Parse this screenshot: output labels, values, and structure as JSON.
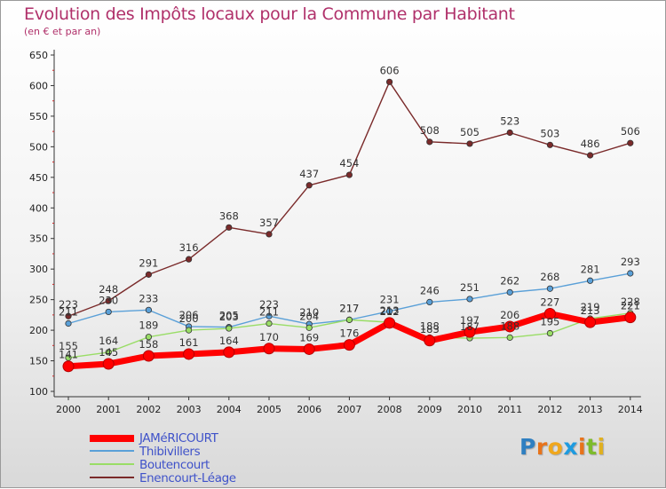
{
  "title": "Evolution des Impôts locaux pour la Commune par Habitant",
  "subtitle": "(en € et par an)",
  "logo": {
    "text": "Proxiti",
    "letters": [
      "P",
      "r",
      "o",
      "x",
      "i",
      "t",
      "i"
    ],
    "colors": [
      "#2f7fc1",
      "#e8731a",
      "#f0a71c",
      "#1e9be0",
      "#e8731a",
      "#7dbb2c",
      "#e0b020"
    ]
  },
  "chart_data": {
    "type": "line",
    "title": "Evolution des Impôts locaux pour la Commune par Habitant",
    "subtitle": "(en € et par an)",
    "x": [
      2000,
      2001,
      2002,
      2003,
      2004,
      2005,
      2006,
      2007,
      2008,
      2009,
      2010,
      2011,
      2012,
      2013,
      2014
    ],
    "yticks": [
      100,
      150,
      200,
      250,
      300,
      350,
      400,
      450,
      500,
      550,
      600,
      650
    ],
    "ylim": [
      100,
      650
    ],
    "grid": false,
    "legend_position": "bottom-left",
    "series": [
      {
        "name": "JAMéRICOURT",
        "color": "#ff0000",
        "values": [
          141,
          145,
          158,
          161,
          164,
          170,
          169,
          176,
          212,
          183,
          197,
          206,
          227,
          213,
          221
        ]
      },
      {
        "name": "Thibivillers",
        "color": "#5aa0d8",
        "values": [
          211,
          230,
          233,
          206,
          205,
          223,
          210,
          217,
          231,
          246,
          251,
          262,
          268,
          281,
          293
        ]
      },
      {
        "name": "Boutencourt",
        "color": "#99dd66",
        "values": [
          155,
          164,
          189,
          200,
          203,
          211,
          204,
          217,
          213,
          188,
          187,
          188,
          195,
          219,
          228
        ]
      },
      {
        "name": "Enencourt-Léage",
        "color": "#7a2a2a",
        "values": [
          223,
          248,
          291,
          316,
          368,
          357,
          437,
          454,
          606,
          508,
          505,
          523,
          503,
          486,
          506
        ]
      }
    ],
    "labels": [
      {
        "series": "JAMéRICOURT",
        "text": [
          "141",
          "145",
          "158",
          "161",
          "164",
          "170",
          "169",
          "176",
          "212",
          "183",
          "197",
          "206",
          "227",
          "213",
          "221"
        ]
      },
      {
        "series": "Thibivillers",
        "text": [
          "211",
          "230",
          "233",
          "206",
          "205",
          "223",
          "210",
          "217",
          "231",
          "246",
          "251",
          "262",
          "268",
          "281",
          "293"
        ]
      },
      {
        "series": "Boutencourt",
        "text": [
          "155",
          "164",
          "189",
          "200",
          "203",
          "211",
          "204",
          "217",
          "213",
          "188",
          "187",
          "188",
          "195",
          "219",
          "228"
        ]
      },
      {
        "series": "Enencourt-Léage",
        "text": [
          "223",
          "248",
          "291",
          "316",
          "368",
          "357",
          "437",
          "454",
          "606",
          "508",
          "505",
          "523",
          "503",
          "486",
          "506"
        ]
      }
    ]
  }
}
